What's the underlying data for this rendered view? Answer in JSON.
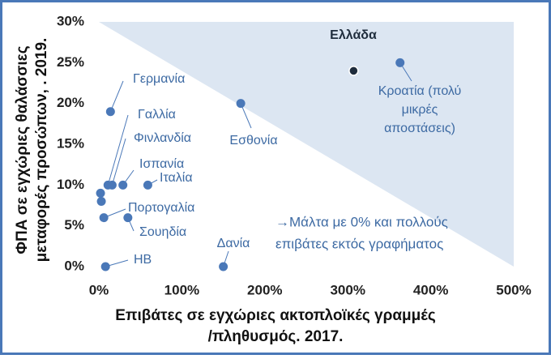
{
  "chart_data": {
    "type": "scatter",
    "x_label": [
      "Επιβάτες σε εγχώριες ακτοπλοϊκές γραμμές",
      "/πληθυσμός. 2017."
    ],
    "y_label": [
      "ΦΠΑ σε εγχώριες θαλάσσιες",
      "μεταφορές προσώπων, . 2019."
    ],
    "annotation": [
      "→Μάλτα με 0% και πολλούς",
      "επιβάτες εκτός γραφήματος"
    ],
    "xlim": [
      0,
      500
    ],
    "ylim": [
      0,
      30
    ],
    "xticks": [
      {
        "value": 0,
        "label": "0%"
      },
      {
        "value": 100,
        "label": "100%"
      },
      {
        "value": 200,
        "label": "200%"
      },
      {
        "value": 300,
        "label": "300%"
      },
      {
        "value": 400,
        "label": "400%"
      },
      {
        "value": 500,
        "label": "500%"
      }
    ],
    "yticks": [
      {
        "value": 0,
        "label": "0%"
      },
      {
        "value": 5,
        "label": "5%"
      },
      {
        "value": 10,
        "label": "10%"
      },
      {
        "value": 15,
        "label": "15%"
      },
      {
        "value": 20,
        "label": "20%"
      },
      {
        "value": 25,
        "label": "25%"
      },
      {
        "value": 30,
        "label": "30%"
      }
    ],
    "points": [
      {
        "x": 307,
        "y": 24,
        "label": "Ελλάδα",
        "color": "#1f2d3d"
      },
      {
        "x": 363,
        "y": 25,
        "label": [
          "Κροατία (πολύ",
          "μικρές",
          "αποστάσεις)"
        ],
        "color": "#4a78b8"
      },
      {
        "x": 171,
        "y": 20,
        "label": "Εσθονία",
        "color": "#4a78b8"
      },
      {
        "x": 14,
        "y": 19,
        "label": "Γερμανία",
        "color": "#4a78b8"
      },
      {
        "x": 11,
        "y": 10,
        "label": "Γαλλία",
        "color": "#4a78b8"
      },
      {
        "x": 16,
        "y": 10,
        "label": "Φινλανδία",
        "color": "#4a78b8"
      },
      {
        "x": 29,
        "y": 10,
        "label": "Ισπανία",
        "color": "#4a78b8"
      },
      {
        "x": 59,
        "y": 10,
        "label": "Ιταλία",
        "color": "#4a78b8"
      },
      {
        "x": 2,
        "y": 9,
        "label": null,
        "color": "#4a78b8"
      },
      {
        "x": 3,
        "y": 8,
        "label": null,
        "color": "#4a78b8"
      },
      {
        "x": 6,
        "y": 6,
        "label": "Πορτογαλία",
        "color": "#4a78b8"
      },
      {
        "x": 35,
        "y": 6,
        "label": "Σουηδία",
        "color": "#4a78b8"
      },
      {
        "x": 8,
        "y": 0,
        "label": "ΗΒ",
        "color": "#4a78b8"
      },
      {
        "x": 150,
        "y": 0,
        "label": "Δανία",
        "color": "#4a78b8"
      }
    ]
  }
}
